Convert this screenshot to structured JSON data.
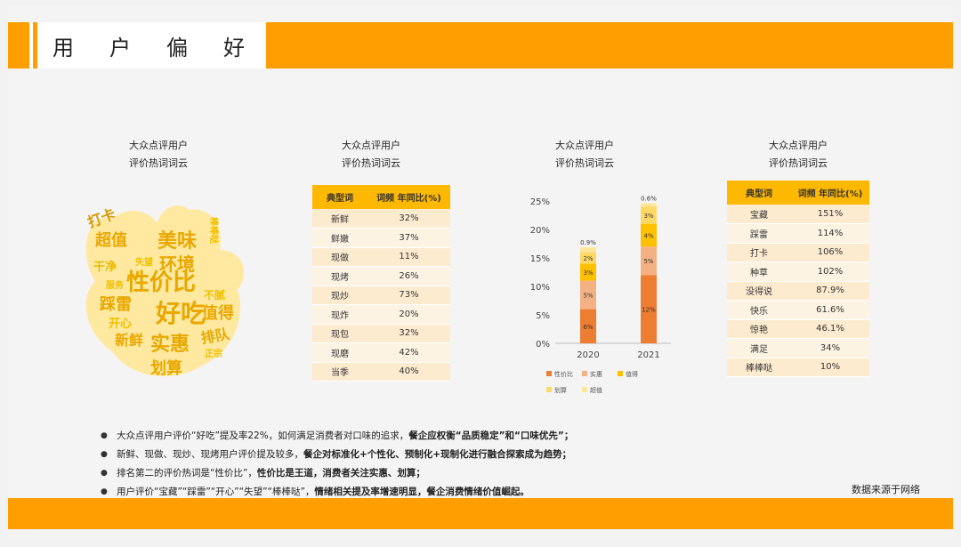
{
  "header": {
    "title": "用户偏好"
  },
  "panels": [
    {
      "title_line1": "大众点评用户",
      "title_line2": "评价热词词云"
    },
    {
      "title_line1": "大众点评用户",
      "title_line2": "评价热词词云"
    },
    {
      "title_line1": "大众点评用户",
      "title_line2": "评价热词词云"
    },
    {
      "title_line1": "大众点评用户",
      "title_line2": "评价热词词云"
    }
  ],
  "cloud_words": [
    "超值",
    "美味",
    "环境",
    "打卡",
    "干净",
    "性价比",
    "踩雷",
    "好吃",
    "值得",
    "不腻",
    "开心",
    "排队",
    "新鲜",
    "实惠",
    "划算",
    "棒棒哒",
    "失望",
    "正宗",
    "服务"
  ],
  "table1": {
    "headers": [
      "典型词",
      "词频 年同比(%)"
    ],
    "rows": [
      [
        "新鲜",
        "32%"
      ],
      [
        "鲜嫩",
        "37%"
      ],
      [
        "现做",
        "11%"
      ],
      [
        "现烤",
        "26%"
      ],
      [
        "现炒",
        "73%"
      ],
      [
        "现炸",
        "20%"
      ],
      [
        "现包",
        "32%"
      ],
      [
        "现磨",
        "42%"
      ],
      [
        "当季",
        "40%"
      ]
    ]
  },
  "table2": {
    "headers": [
      "典型词",
      "词频 年同比(%)"
    ],
    "rows": [
      [
        "宝藏",
        "151%"
      ],
      [
        "踩雷",
        "114%"
      ],
      [
        "打卡",
        "106%"
      ],
      [
        "种草",
        "102%"
      ],
      [
        "没得说",
        "87.9%"
      ],
      [
        "快乐",
        "61.6%"
      ],
      [
        "惊艳",
        "46.1%"
      ],
      [
        "满足",
        "34%"
      ],
      [
        "棒棒哒",
        "10%"
      ]
    ]
  },
  "chart_data": {
    "type": "bar",
    "stacked": true,
    "categories": [
      "2020",
      "2021"
    ],
    "series": [
      {
        "name": "性价比",
        "values": [
          6,
          12
        ],
        "color": "#ed7d31"
      },
      {
        "name": "实惠",
        "values": [
          5,
          5
        ],
        "color": "#f4b183"
      },
      {
        "name": "值得",
        "values": [
          3,
          4
        ],
        "color": "#ffc000"
      },
      {
        "name": "划算",
        "values": [
          2,
          3
        ],
        "color": "#ffd966"
      },
      {
        "name": "超值",
        "values": [
          0.9,
          0.6
        ],
        "color": "#ffe699"
      }
    ],
    "data_labels": [
      [
        "6%",
        "5%",
        "3%",
        "2%",
        "0.9%"
      ],
      [
        "12%",
        "5%",
        "4%",
        "3%",
        "0.6%"
      ]
    ],
    "yticks": [
      "0%",
      "5%",
      "10%",
      "15%",
      "20%",
      "25%"
    ],
    "ylim": [
      0,
      25
    ],
    "legend_position": "bottom"
  },
  "bullets": [
    {
      "normal": "大众点评用户评价“好吃”提及率22%，如何满足消费者对口味的追求，",
      "bold": "餐企应权衡“品质稳定”和“口味优先”；"
    },
    {
      "normal": "新鲜、现做、现炒、现烤用户评价提及较多，",
      "bold": "餐企对标准化+个性化、预制化+现制化进行融合探索成为趋势；"
    },
    {
      "normal": "排名第二的评价热词是“性价比”，",
      "bold": "性价比是王道，消费者关注实惠、划算；"
    },
    {
      "normal": "用户评价“宝藏”“踩雷”“开心”“失望”“棒棒哒”，",
      "bold": "情绪相关提及率增速明显，餐企消费情绪价值崛起。"
    }
  ],
  "source": "数据来源于网络"
}
